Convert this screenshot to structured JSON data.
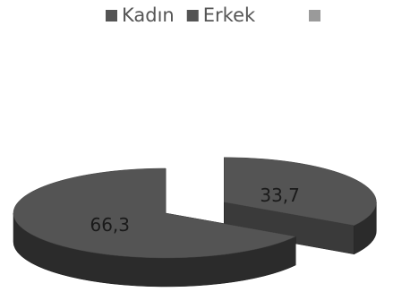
{
  "chart_data": {
    "type": "pie",
    "categories": [
      "Kadın",
      "Erkek"
    ],
    "values": [
      33.7,
      66.3
    ],
    "value_labels": [
      "33,7",
      "66,3"
    ],
    "colors": [
      "#545454",
      "#545454"
    ],
    "legend": "top"
  }
}
